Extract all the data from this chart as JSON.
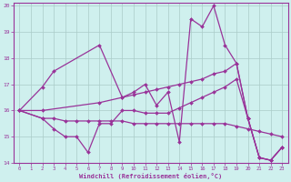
{
  "xlabel": "Windchill (Refroidissement éolien,°C)",
  "bg_color": "#cff0ee",
  "line_color": "#993399",
  "xlim": [
    -0.5,
    23.5
  ],
  "ylim": [
    14,
    20.1
  ],
  "yticks": [
    14,
    15,
    16,
    17,
    18,
    19,
    20
  ],
  "xticks": [
    0,
    1,
    2,
    3,
    4,
    5,
    6,
    7,
    8,
    9,
    10,
    11,
    12,
    13,
    14,
    15,
    16,
    17,
    18,
    19,
    20,
    21,
    22,
    23
  ],
  "lines": [
    {
      "x": [
        0,
        2,
        3,
        7,
        9,
        10,
        11,
        12,
        13,
        14,
        15,
        16,
        17,
        18,
        19,
        20,
        21,
        22,
        23
      ],
      "y": [
        16.0,
        16.9,
        17.5,
        18.5,
        16.5,
        16.7,
        17.0,
        16.2,
        16.7,
        14.8,
        19.5,
        19.2,
        20.0,
        18.5,
        17.8,
        15.7,
        14.2,
        14.1,
        14.6
      ]
    },
    {
      "x": [
        0,
        2,
        7,
        9,
        10,
        11,
        12,
        13,
        14,
        15,
        16,
        17,
        18,
        19,
        20,
        21,
        22,
        23
      ],
      "y": [
        16.0,
        16.0,
        16.3,
        16.5,
        16.6,
        16.7,
        16.8,
        16.9,
        17.0,
        17.1,
        17.2,
        17.4,
        17.5,
        17.8,
        15.7,
        14.2,
        14.1,
        14.6
      ]
    },
    {
      "x": [
        0,
        2,
        3,
        4,
        5,
        6,
        7,
        8,
        9,
        10,
        11,
        12,
        13,
        14,
        15,
        16,
        17,
        18,
        19,
        20,
        21,
        22,
        23
      ],
      "y": [
        16.0,
        15.7,
        15.7,
        15.6,
        15.6,
        15.6,
        15.6,
        15.6,
        15.6,
        15.5,
        15.5,
        15.5,
        15.5,
        15.5,
        15.5,
        15.5,
        15.5,
        15.5,
        15.4,
        15.3,
        15.2,
        15.1,
        15.0
      ]
    },
    {
      "x": [
        0,
        2,
        3,
        4,
        5,
        6,
        7,
        8,
        9,
        10,
        11,
        12,
        13,
        14,
        15,
        16,
        17,
        18,
        19,
        20,
        21,
        22,
        23
      ],
      "y": [
        16.0,
        15.7,
        15.3,
        15.0,
        15.0,
        14.4,
        15.5,
        15.5,
        16.0,
        16.0,
        15.9,
        15.9,
        15.9,
        16.1,
        16.3,
        16.5,
        16.7,
        16.9,
        17.2,
        15.7,
        14.2,
        14.1,
        14.6
      ]
    }
  ]
}
